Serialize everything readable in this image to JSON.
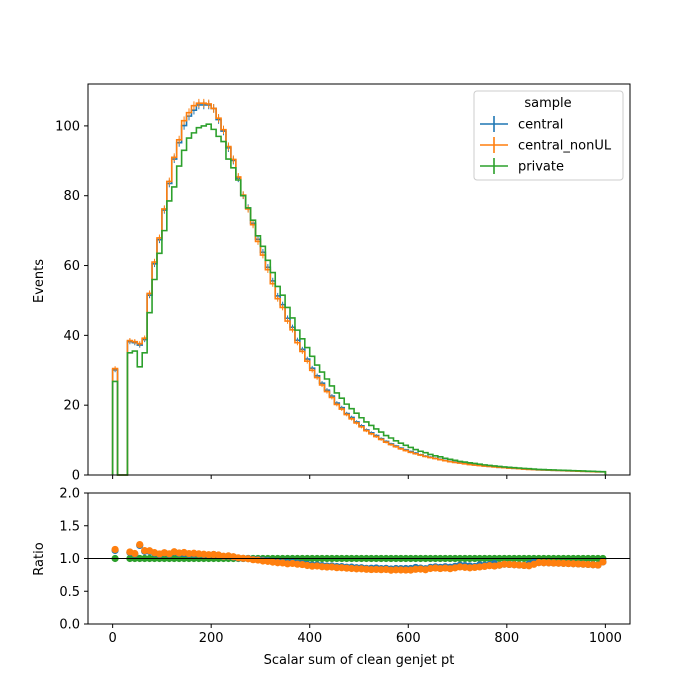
{
  "chart_data": [
    {
      "type": "line",
      "style": "step histogram",
      "title": "",
      "xlabel": "",
      "ylabel": "Events",
      "xlim": [
        -50,
        1050
      ],
      "ylim": [
        0,
        112
      ],
      "xticks": [
        "0",
        "200",
        "400",
        "600",
        "800",
        "1000"
      ],
      "xticks_labeled": false,
      "yticks": [
        "0",
        "20",
        "40",
        "60",
        "80",
        "100"
      ],
      "grid": false,
      "legend": {
        "title": "sample",
        "placement": "top-right"
      },
      "bin_width": 10,
      "x_range": [
        0,
        1000
      ],
      "series": [
        {
          "name": "central",
          "color": "#1f77b4",
          "error_bars": true,
          "values": [
            30.1,
            0,
            0,
            38.2,
            37.9,
            37.2,
            38.8,
            51.5,
            60.5,
            67.4,
            75.9,
            83.5,
            90.5,
            95.2,
            100.1,
            102.8,
            104.5,
            106.0,
            106.0,
            106.0,
            105.0,
            101.8,
            98.5,
            93.7,
            90.1,
            85.0,
            80.1,
            76.5,
            72.1,
            67.5,
            63.8,
            59.5,
            55.6,
            51.3,
            48.8,
            44.9,
            42.3,
            38.6,
            36.0,
            33.2,
            30.6,
            28.4,
            26.3,
            24.3,
            22.6,
            20.6,
            19.3,
            17.6,
            16.5,
            15.2,
            14.1,
            12.9,
            12.1,
            11.3,
            10.4,
            9.6,
            8.9,
            8.3,
            7.7,
            7.2,
            6.7,
            6.3,
            5.8,
            5.4,
            5.1,
            4.8,
            4.5,
            4.2,
            3.9,
            3.7,
            3.5,
            3.3,
            3.1,
            2.9,
            2.8,
            2.6,
            2.5,
            2.4,
            2.2,
            2.1,
            2.0,
            1.9,
            1.8,
            1.7,
            1.65,
            1.6,
            1.5,
            1.45,
            1.4,
            1.35,
            1.3,
            1.25,
            1.2,
            1.15,
            1.1,
            1.05,
            1.0,
            0.95,
            0.9,
            0.9
          ]
        },
        {
          "name": "central_nonUL",
          "color": "#ff7f0e",
          "error_bars": true,
          "values": [
            30.5,
            0,
            0,
            38.5,
            38.2,
            37.6,
            39.2,
            52.0,
            61.0,
            67.9,
            76.2,
            84.1,
            91.0,
            96.0,
            101.5,
            103.8,
            105.8,
            106.5,
            106.5,
            106.3,
            105.0,
            102.2,
            98.9,
            94.1,
            90.4,
            85.4,
            80.2,
            76.2,
            71.7,
            66.9,
            63.0,
            58.8,
            54.8,
            50.5,
            48.0,
            44.1,
            41.6,
            37.9,
            35.4,
            32.6,
            30.0,
            27.9,
            25.8,
            23.9,
            22.2,
            20.2,
            18.9,
            17.3,
            16.1,
            14.9,
            13.8,
            12.7,
            11.8,
            11.0,
            10.2,
            9.4,
            8.7,
            8.1,
            7.5,
            7.0,
            6.5,
            6.1,
            5.7,
            5.3,
            5.0,
            4.7,
            4.4,
            4.1,
            3.8,
            3.6,
            3.4,
            3.2,
            3.0,
            2.85,
            2.7,
            2.55,
            2.45,
            2.3,
            2.2,
            2.1,
            2.0,
            1.9,
            1.8,
            1.7,
            1.6,
            1.55,
            1.5,
            1.45,
            1.4,
            1.35,
            1.3,
            1.25,
            1.2,
            1.15,
            1.1,
            1.05,
            1.0,
            0.95,
            0.9,
            0.9
          ]
        },
        {
          "name": "private",
          "color": "#2ca02c",
          "error_bars": true,
          "values": [
            26.8,
            0,
            0,
            35.0,
            35.5,
            31.0,
            35.0,
            46.5,
            56.0,
            63.5,
            70.0,
            78.5,
            82.5,
            88.5,
            93.0,
            96.5,
            98.0,
            99.5,
            100.0,
            100.5,
            99.0,
            97.0,
            95.5,
            90.5,
            88.0,
            84.5,
            80.0,
            76.5,
            73.0,
            68.5,
            65.5,
            61.5,
            58.0,
            54.0,
            51.5,
            48.0,
            45.0,
            41.5,
            39.0,
            36.5,
            34.0,
            31.5,
            29.5,
            27.5,
            25.5,
            23.5,
            22.0,
            20.3,
            19.0,
            17.7,
            16.4,
            15.2,
            14.2,
            13.2,
            12.3,
            11.3,
            10.6,
            9.8,
            9.1,
            8.5,
            7.9,
            7.3,
            6.8,
            6.4,
            5.9,
            5.5,
            5.2,
            4.8,
            4.5,
            4.2,
            3.9,
            3.7,
            3.5,
            3.3,
            3.1,
            2.9,
            2.75,
            2.6,
            2.45,
            2.3,
            2.2,
            2.1,
            2.0,
            1.9,
            1.8,
            1.7,
            1.6,
            1.55,
            1.5,
            1.45,
            1.4,
            1.35,
            1.3,
            1.25,
            1.2,
            1.15,
            1.1,
            1.05,
            1.0,
            0.95
          ]
        }
      ]
    },
    {
      "type": "scatter",
      "title": "",
      "xlabel": "Scalar sum of clean genjet pt",
      "ylabel": "Ratio",
      "xlim": [
        -50,
        1050
      ],
      "ylim": [
        0.0,
        2.0
      ],
      "xticks": [
        "0",
        "200",
        "400",
        "600",
        "800",
        "1000"
      ],
      "yticks": [
        "0.0",
        "0.5",
        "1.0",
        "1.5",
        "2.0"
      ],
      "reference_line": 1.0,
      "grid": false,
      "series": [
        {
          "name": "central",
          "color": "#1f77b4"
        },
        {
          "name": "central_nonUL",
          "color": "#ff7f0e"
        },
        {
          "name": "private",
          "color": "#2ca02c"
        }
      ]
    }
  ]
}
